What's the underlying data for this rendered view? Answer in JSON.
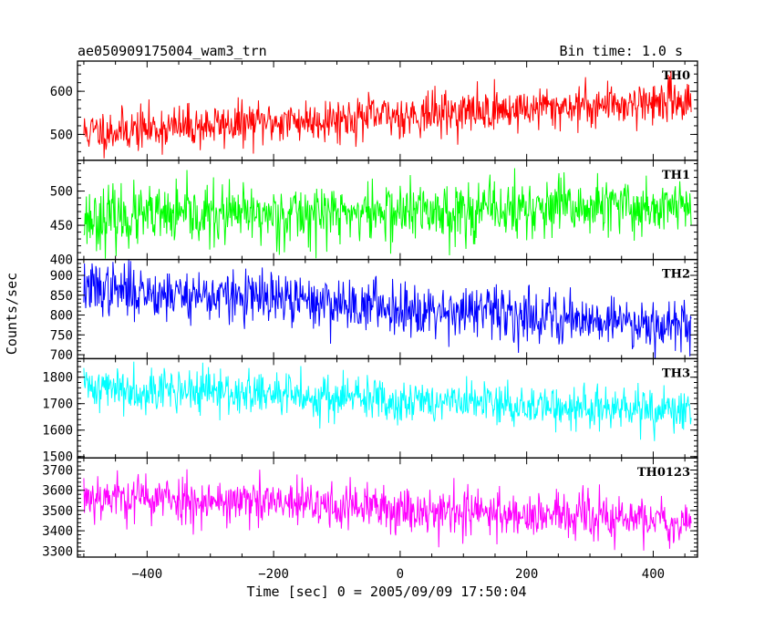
{
  "chart_data": {
    "type": "line",
    "title": "ae050909175004_wam3_trn",
    "subtitle": "Bin time: 1.0 s",
    "xlabel": "Time [sec] 0 = 2005/09/09 17:50:04",
    "ylabel": "Counts/sec",
    "xlim": [
      -510,
      470
    ],
    "xticks": [
      -400,
      -200,
      0,
      200,
      400
    ],
    "x_range": [
      -500,
      460
    ],
    "series": [
      {
        "name": "TH0",
        "color": "#ff0000",
        "ylim": [
          440,
          670
        ],
        "yticks": [
          500,
          600
        ],
        "trend_start": 505,
        "trend_end": 580,
        "noise": 25,
        "seed": 11
      },
      {
        "name": "TH1",
        "color": "#00ff00",
        "ylim": [
          400,
          545
        ],
        "yticks": [
          400,
          450,
          500
        ],
        "trend_start": 460,
        "trend_end": 478,
        "noise": 22,
        "seed": 23
      },
      {
        "name": "TH2",
        "color": "#0000ff",
        "ylim": [
          690,
          940
        ],
        "yticks": [
          700,
          750,
          800,
          850,
          900
        ],
        "trend_start": 868,
        "trend_end": 775,
        "noise": 33,
        "seed": 37
      },
      {
        "name": "TH3",
        "color": "#00ffff",
        "ylim": [
          1495,
          1870
        ],
        "yticks": [
          1500,
          1600,
          1700,
          1800
        ],
        "trend_start": 1765,
        "trend_end": 1665,
        "noise": 42,
        "seed": 41
      },
      {
        "name": "TH0123",
        "color": "#ff00ff",
        "ylim": [
          3270,
          3760
        ],
        "yticks": [
          3300,
          3400,
          3500,
          3600,
          3700
        ],
        "trend_start": 3575,
        "trend_end": 3445,
        "noise": 60,
        "seed": 53
      }
    ]
  }
}
